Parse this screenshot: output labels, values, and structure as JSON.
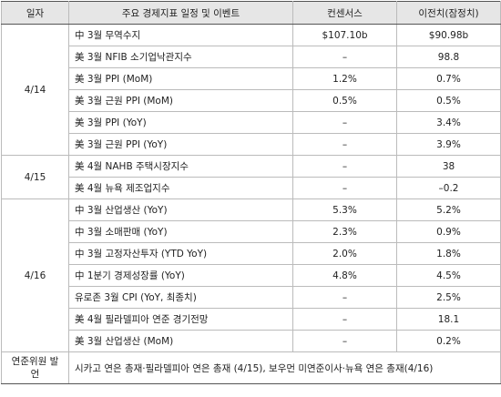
{
  "header": [
    "일자",
    "주요 경제지표 일정 및 이벤트",
    "컨센서스",
    "이전치(잠정치)"
  ],
  "groups": [
    {
      "date": "4/14",
      "rows": [
        [
          "中 3월 무역수지",
          "$107.10b",
          "$90.98b"
        ],
        [
          "美 3월 NFIB 소기업낙관지수",
          "–",
          "98.8"
        ],
        [
          "美 3월 PPI (MoM)",
          "1.2%",
          "0.7%"
        ],
        [
          "美 3월 근원 PPI (MoM)",
          "0.5%",
          "0.5%"
        ],
        [
          "美 3월 PPI (YoY)",
          "–",
          "3.4%"
        ],
        [
          "美 3월 근원 PPI (YoY)",
          "–",
          "3.9%"
        ]
      ]
    },
    {
      "date": "4/15",
      "rows": [
        [
          "美 4월 NAHB 주택시장지수",
          "–",
          "38"
        ],
        [
          "美 4월 뉴욕 제조업지수",
          "–",
          "–0.2"
        ]
      ]
    },
    {
      "date": "4/16",
      "rows": [
        [
          "中 3월 산업생산 (YoY)",
          "5.3%",
          "5.2%"
        ],
        [
          "中 3월 소매판매 (YoY)",
          "2.3%",
          "0.9%"
        ],
        [
          "中 3월 고정자산투자 (YTD YoY)",
          "2.0%",
          "1.8%"
        ],
        [
          "中 1분기 경제성장률 (YoY)",
          "4.8%",
          "4.5%"
        ],
        [
          "유로존 3월 CPI (YoY, 최종치)",
          "–",
          "2.5%"
        ],
        [
          "美 4월 필라델피아 연준 경기전망",
          "–",
          "18.1"
        ],
        [
          "美 3월 산업생산 (MoM)",
          "–",
          "0.2%"
        ]
      ]
    }
  ],
  "footer": {
    "label": "연준위원 발언",
    "text": "시카고 연은 총재·필라델피아 연은 총재 (4/15), 보우먼 미연준이사·뉴욕 연은 총재(4/16)"
  }
}
